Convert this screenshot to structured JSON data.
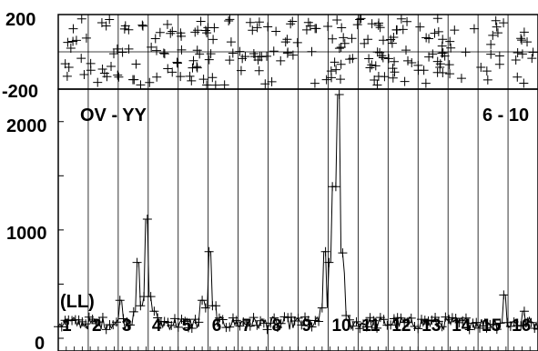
{
  "chart_data": {
    "type": "line",
    "baseline": "(LL)",
    "title_left": "OV - YY",
    "title_right": "6 - 10",
    "top_panel": {
      "type": "scatter",
      "marker": "+",
      "ylim": [
        -200,
        200
      ],
      "yticks": [
        "200",
        "-200"
      ],
      "note": "residuals, scattered uniformly within range"
    },
    "bottom_panel": {
      "type": "line",
      "marker": "+",
      "ylim": [
        0,
        2300
      ],
      "yticks": [
        "2000",
        "1000",
        "0"
      ],
      "channels": [
        "1",
        "2",
        "3",
        "4",
        "5",
        "6",
        "7",
        "8",
        "9",
        "10",
        "11",
        "12",
        "13",
        "14",
        "15",
        "16"
      ],
      "peaks": [
        {
          "x": 0.13,
          "y": 350
        },
        {
          "x": 0.165,
          "y": 700
        },
        {
          "x": 0.175,
          "y": 300
        },
        {
          "x": 0.185,
          "y": 1100
        },
        {
          "x": 0.2,
          "y": 250
        },
        {
          "x": 0.3,
          "y": 350
        },
        {
          "x": 0.315,
          "y": 800
        },
        {
          "x": 0.325,
          "y": 300
        },
        {
          "x": 0.555,
          "y": 800
        },
        {
          "x": 0.565,
          "y": 700
        },
        {
          "x": 0.575,
          "y": 1400
        },
        {
          "x": 0.585,
          "y": 2250
        },
        {
          "x": 0.595,
          "y": 600
        },
        {
          "x": 0.93,
          "y": 400
        },
        {
          "x": 0.97,
          "y": 250
        }
      ]
    }
  }
}
